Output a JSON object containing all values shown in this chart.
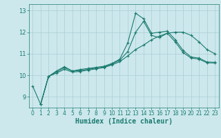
{
  "xlabel": "Humidex (Indice chaleur)",
  "bg_color": "#cce8ed",
  "grid_color": "#aacdd4",
  "line_color": "#1a7a6e",
  "xlim": [
    -0.5,
    23.5
  ],
  "ylim": [
    8.5,
    13.3
  ],
  "xticks": [
    0,
    1,
    2,
    3,
    4,
    5,
    6,
    7,
    8,
    9,
    10,
    11,
    12,
    13,
    14,
    15,
    16,
    17,
    18,
    19,
    20,
    21,
    22,
    23
  ],
  "yticks": [
    9,
    10,
    11,
    12,
    13
  ],
  "line1_x": [
    0,
    1,
    2,
    3,
    4,
    5,
    6,
    7,
    8,
    9,
    10,
    11,
    12,
    13,
    14,
    15,
    16,
    17,
    18,
    19,
    20,
    21,
    22,
    23
  ],
  "line1_y": [
    9.5,
    8.65,
    9.95,
    10.2,
    10.4,
    10.2,
    10.27,
    10.32,
    10.37,
    10.42,
    10.55,
    10.75,
    11.5,
    12.88,
    12.62,
    11.95,
    12.0,
    12.05,
    11.65,
    11.15,
    10.85,
    10.8,
    10.62,
    10.6
  ],
  "line2_x": [
    1,
    2,
    3,
    4,
    5,
    6,
    7,
    8,
    9,
    10,
    11,
    12,
    13,
    14,
    15,
    16,
    17,
    18,
    19,
    20,
    21,
    22,
    23
  ],
  "line2_y": [
    8.65,
    9.95,
    10.15,
    10.35,
    10.2,
    10.22,
    10.28,
    10.33,
    10.38,
    10.52,
    10.7,
    11.1,
    12.0,
    12.5,
    11.85,
    11.75,
    11.95,
    11.55,
    11.05,
    10.8,
    10.75,
    10.58,
    10.57
  ],
  "line3_x": [
    1,
    2,
    3,
    4,
    5,
    6,
    7,
    8,
    9,
    10,
    11,
    12,
    13,
    14,
    15,
    16,
    17,
    18,
    19,
    20,
    21,
    22,
    23
  ],
  "line3_y": [
    8.65,
    9.95,
    10.1,
    10.28,
    10.15,
    10.18,
    10.24,
    10.3,
    10.36,
    10.48,
    10.63,
    10.9,
    11.2,
    11.4,
    11.65,
    11.82,
    11.95,
    12.0,
    12.0,
    11.85,
    11.55,
    11.2,
    11.0
  ]
}
